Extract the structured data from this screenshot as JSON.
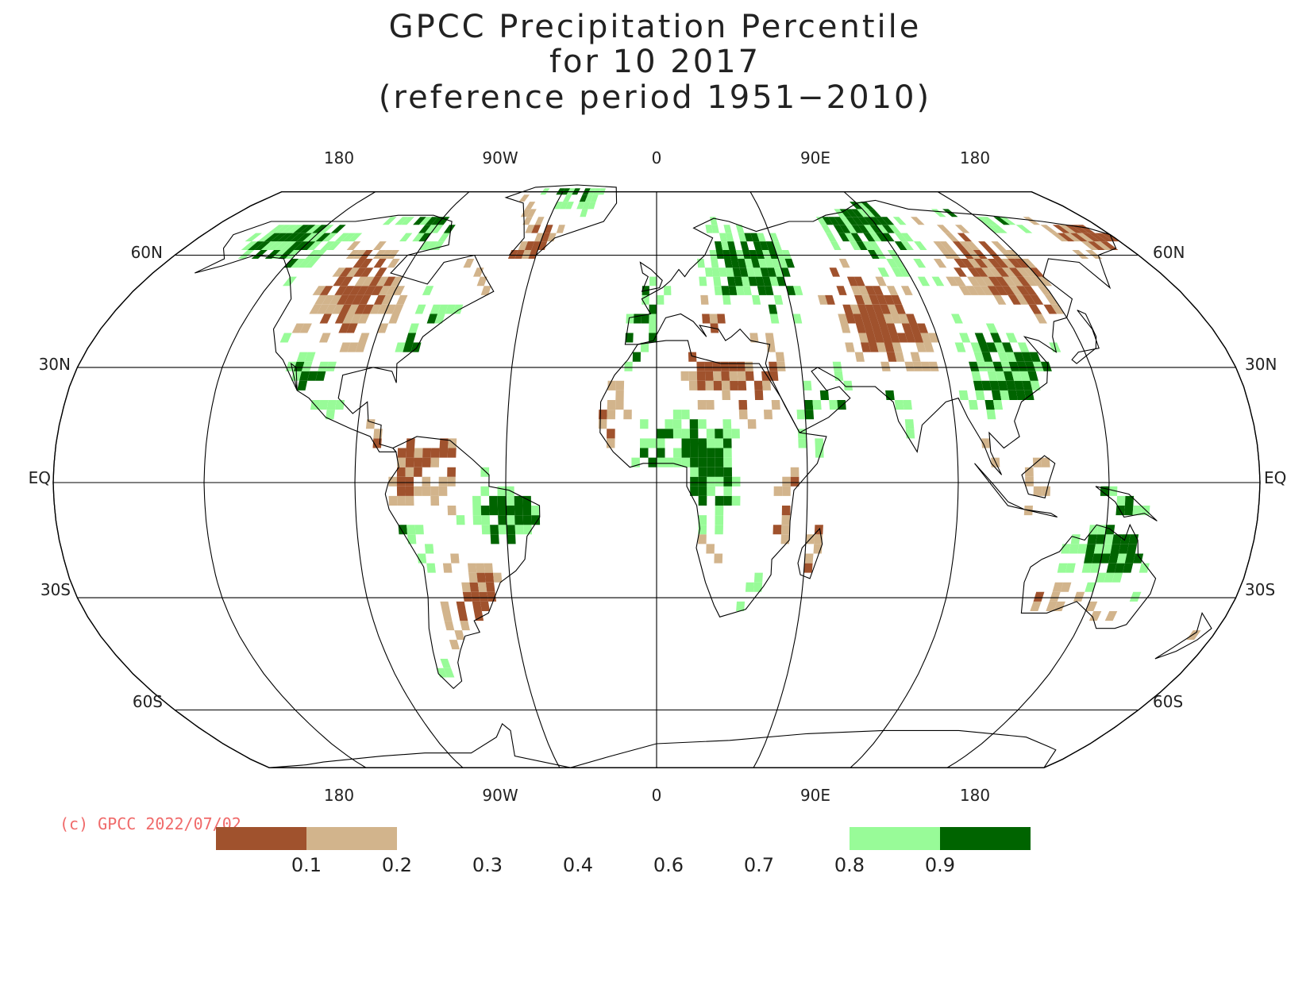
{
  "title": {
    "line1": "GPCC Precipitation Percentile",
    "line2": "for 10 2017",
    "line3": "(reference period 1951−2010)"
  },
  "projection": "robinson",
  "longitude_labels": [
    "180",
    "90W",
    "0",
    "90E",
    "180"
  ],
  "latitude_labels": {
    "n60": "60N",
    "n30": "30N",
    "eq": "EQ",
    "s30": "30S",
    "s60": "60S"
  },
  "credit": "(c) GPCC 2022/07/02",
  "colors": {
    "dry_strong": "#a0522d",
    "dry": "#d2b48c",
    "wet": "#98fb98",
    "wet_strong": "#006400",
    "lines": "#000000"
  },
  "legend": {
    "ticks": [
      "0.1",
      "0.2",
      "0.3",
      "0.4",
      "0.6",
      "0.7",
      "0.8",
      "0.9"
    ],
    "bins": [
      {
        "from": 0.0,
        "to": 0.1,
        "color": "#a0522d"
      },
      {
        "from": 0.1,
        "to": 0.2,
        "color": "#d2b48c"
      },
      {
        "from": 0.8,
        "to": 0.9,
        "color": "#98fb98"
      },
      {
        "from": 0.9,
        "to": 1.0,
        "color": "#006400"
      }
    ]
  }
}
